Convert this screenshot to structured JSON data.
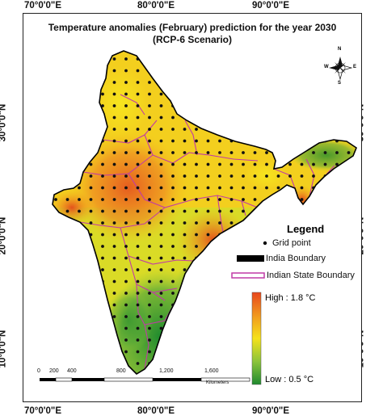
{
  "title_line1": "Temperature anomalies (February) prediction for the year 2030",
  "title_line2": "(RCP-6 Scenario)",
  "lon_ticks": [
    "70°0'0\"E",
    "80°0'0\"E",
    "90°0'0\"E"
  ],
  "lat_ticks": [
    "30°0'0\"N",
    "20°0'0\"N",
    "10°0'0\"N"
  ],
  "legend": {
    "title": "Legend",
    "grid_point": "Grid point",
    "india_boundary": "India Boundary",
    "state_boundary": "Indian State Boundary",
    "high": "High : 1.8 °C",
    "low": "Low : 0.5 °C"
  },
  "scale_bar": {
    "labels": [
      "0",
      "200",
      "400",
      "800",
      "1,200",
      "1,600"
    ],
    "unit": "Kilometers"
  },
  "compass": {
    "n": "N",
    "s": "S",
    "e": "E",
    "w": "W"
  },
  "colors": {
    "high": "#e8471d",
    "mid": "#f5e21b",
    "low": "#1f8a2f",
    "state_boundary": "#c13aa6",
    "india_boundary": "#000000"
  }
}
